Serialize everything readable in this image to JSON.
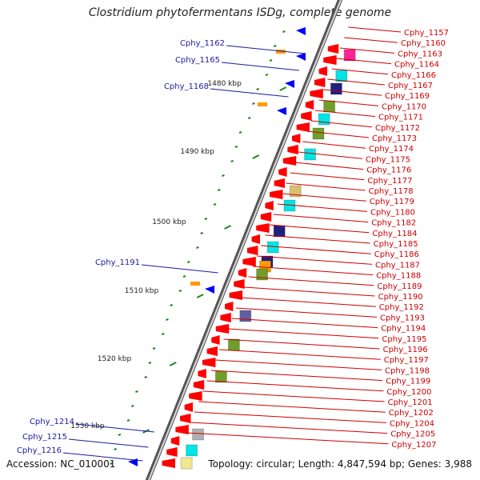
{
  "title": "Clostridium phytofermentans ISDg, complete genome",
  "accession_label": "Accession: NC_010001",
  "topology_label": "Topology: circular; Length: 4,847,594 bp; Genes: 3,988",
  "colors": {
    "forward_gene": "#ff0000",
    "reverse_gene": "#0000ff",
    "backbone": "#808080",
    "tick": "#1a8a1a",
    "label_right": "#cc0000",
    "label_left": "#1a1aa0",
    "cog_cyan": "#00e5e5",
    "cog_green": "#6f9f2a",
    "cog_navy": "#202080",
    "cog_magenta": "#ff2299",
    "cog_orange": "#ff9900",
    "cog_tan": "#d8c070",
    "cog_grey": "#b0b0b0",
    "cog_slate": "#6060a0",
    "cog_yellow": "#f0e890"
  },
  "scale_labels": [
    "1480 kbp",
    "1490 kbp",
    "1500 kbp",
    "1510 kbp",
    "1520 kbp",
    "1530 kbp"
  ],
  "right_genes": [
    "Cphy_1157",
    "Cphy_1160",
    "Cphy_1163",
    "Cphy_1164",
    "Cphy_1166",
    "Cphy_1167",
    "Cphy_1169",
    "Cphy_1170",
    "Cphy_1171",
    "Cphy_1172",
    "Cphy_1173",
    "Cphy_1174",
    "Cphy_1175",
    "Cphy_1176",
    "Cphy_1177",
    "Cphy_1178",
    "Cphy_1179",
    "Cphy_1180",
    "Cphy_1182",
    "Cphy_1184",
    "Cphy_1185",
    "Cphy_1186",
    "Cphy_1187",
    "Cphy_1188",
    "Cphy_1189",
    "Cphy_1190",
    "Cphy_1192",
    "Cphy_1193",
    "Cphy_1194",
    "Cphy_1195",
    "Cphy_1196",
    "Cphy_1197",
    "Cphy_1198",
    "Cphy_1199",
    "Cphy_1200",
    "Cphy_1201",
    "Cphy_1202",
    "Cphy_1204",
    "Cphy_1205",
    "Cphy_1207"
  ],
  "left_genes": [
    "Cphy_1162",
    "Cphy_1165",
    "Cphy_1168",
    "Cphy_1191",
    "Cphy_1214",
    "Cphy_1215",
    "Cphy_1216"
  ]
}
